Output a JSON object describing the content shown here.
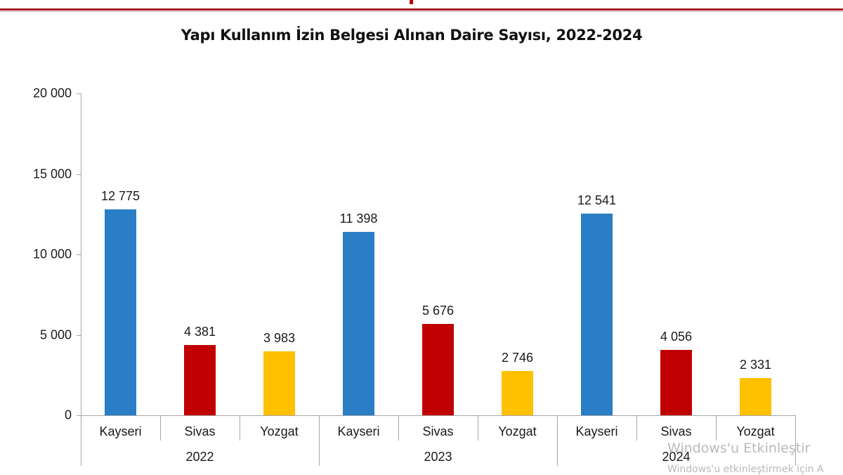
{
  "chart_data": {
    "type": "bar",
    "title": "Yapı Kullanım İzin Belgesi Alınan Daire Sayısı, 2022-2024",
    "xlabel": "",
    "ylabel": "",
    "ylim": [
      0,
      20000
    ],
    "yticks": [
      "0",
      "5 000",
      "10 000",
      "15 000",
      "20 000"
    ],
    "grid": false,
    "legend": null,
    "groups": [
      "2022",
      "2023",
      "2024"
    ],
    "categories": [
      "Kayseri",
      "Sivas",
      "Yozgat",
      "Kayseri",
      "Sivas",
      "Yozgat",
      "Kayseri",
      "Sivas",
      "Yozgat"
    ],
    "series": [
      {
        "name": "2022",
        "values": [
          12775,
          4381,
          3983
        ]
      },
      {
        "name": "2023",
        "values": [
          11398,
          5676,
          2746
        ]
      },
      {
        "name": "2024",
        "values": [
          12541,
          4056,
          2331
        ]
      }
    ],
    "data_labels": [
      "12 775",
      "4 381",
      "3 983",
      "11 398",
      "5 676",
      "2 746",
      "12 541",
      "4 056",
      "2 331"
    ],
    "colors": {
      "Kayseri": "#2a7ec5",
      "Sivas": "#c00000",
      "Yozgat": "#ffc000"
    }
  },
  "watermark": {
    "line1": "Windows'u Etkinleştir",
    "line2": "Windows'u etkinleştirmek için A"
  }
}
